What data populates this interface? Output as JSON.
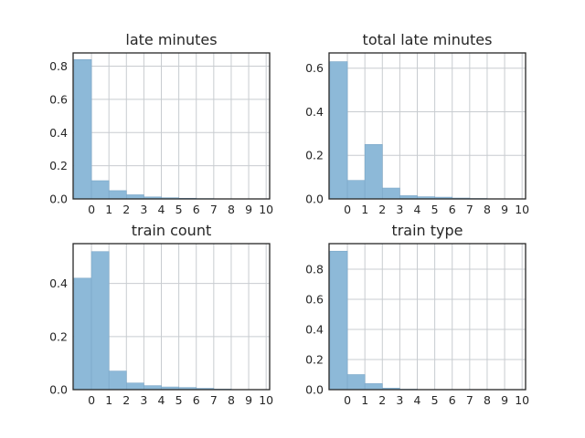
{
  "colors": {
    "bar": "#8db9d8",
    "bar_edge": "#7aa6c7",
    "grid": "#c8ccd0",
    "frame": "#262626",
    "text": "#262626"
  },
  "chart_data": [
    {
      "type": "bar",
      "title": "late minutes",
      "x_ticks": [
        "0",
        "1",
        "2",
        "3",
        "4",
        "5",
        "6",
        "7",
        "8",
        "9",
        "10"
      ],
      "y_ticks": [
        "0.0",
        "0.2",
        "0.4",
        "0.6",
        "0.8"
      ],
      "xlim": [
        -1,
        10
      ],
      "ylim": [
        0,
        0.88
      ],
      "bar_width": 1,
      "x": [
        0,
        1,
        2,
        3,
        4,
        5,
        6,
        7,
        8,
        9
      ],
      "values": [
        0.84,
        0.11,
        0.05,
        0.025,
        0.012,
        0.007,
        0.004,
        0.002,
        0.001,
        0.0
      ],
      "grid": true
    },
    {
      "type": "bar",
      "title": "total late minutes",
      "x_ticks": [
        "0",
        "1",
        "2",
        "3",
        "4",
        "5",
        "6",
        "7",
        "8",
        "9",
        "10"
      ],
      "y_ticks": [
        "0.0",
        "0.2",
        "0.4",
        "0.6"
      ],
      "xlim": [
        -1,
        10
      ],
      "ylim": [
        0,
        0.67
      ],
      "bar_width": 1,
      "x": [
        0,
        1,
        2,
        3,
        4,
        5,
        6,
        7,
        8,
        9
      ],
      "values": [
        0.63,
        0.085,
        0.25,
        0.05,
        0.015,
        0.01,
        0.008,
        0.004,
        0.002,
        0.0
      ],
      "grid": true
    },
    {
      "type": "bar",
      "title": "train count",
      "x_ticks": [
        "0",
        "1",
        "2",
        "3",
        "4",
        "5",
        "6",
        "7",
        "8",
        "9",
        "10"
      ],
      "y_ticks": [
        "0.0",
        "0.2",
        "0.4"
      ],
      "xlim": [
        -1,
        10
      ],
      "ylim": [
        0,
        0.55
      ],
      "bar_width": 1,
      "x": [
        0,
        1,
        2,
        3,
        4,
        5,
        6,
        7,
        8,
        9
      ],
      "values": [
        0.42,
        0.52,
        0.07,
        0.025,
        0.015,
        0.01,
        0.008,
        0.005,
        0.002,
        0.0
      ],
      "grid": true
    },
    {
      "type": "bar",
      "title": "train type",
      "x_ticks": [
        "0",
        "1",
        "2",
        "3",
        "4",
        "5",
        "6",
        "7",
        "8",
        "9",
        "10"
      ],
      "y_ticks": [
        "0.0",
        "0.2",
        "0.4",
        "0.6",
        "0.8"
      ],
      "xlim": [
        -1,
        10
      ],
      "ylim": [
        0,
        0.97
      ],
      "bar_width": 1,
      "x": [
        0,
        1,
        2,
        3,
        4,
        5,
        6,
        7,
        8,
        9
      ],
      "values": [
        0.92,
        0.1,
        0.04,
        0.01,
        0.003,
        0.001,
        0.0,
        0.0,
        0.0,
        0.0
      ],
      "grid": true
    }
  ]
}
